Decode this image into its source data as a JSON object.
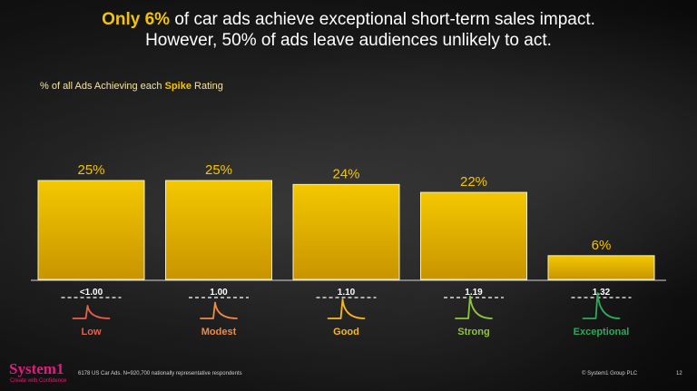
{
  "header": {
    "title_highlight": "Only 6%",
    "title_rest": " of car ads achieve exceptional short-term sales impact.",
    "title_line2": "However, 50% of ads leave audiences unlikely to act."
  },
  "subtitle": {
    "prefix": "% of all Ads Achieving each ",
    "highlight": "Spike",
    "suffix": " Rating"
  },
  "colors": {
    "bar_top": "#f3c800",
    "bar_bottom": "#c89400",
    "accent": "#f5c400",
    "brand": "#e6197e",
    "low": "#e8604c",
    "modest": "#ee8a45",
    "good": "#f5b820",
    "strong": "#8cc63f",
    "exceptional": "#2ea85a"
  },
  "chart_data": {
    "type": "bar",
    "title": "% of all Ads Achieving each Spike Rating",
    "categories": [
      "Low",
      "Modest",
      "Good",
      "Strong",
      "Exceptional"
    ],
    "values": [
      25,
      25,
      24,
      22,
      6
    ],
    "value_labels": [
      "25%",
      "25%",
      "24%",
      "22%",
      "6%"
    ],
    "spike_thresholds": [
      "<1.00",
      "1.00",
      "1.10",
      "1.19",
      "1.32"
    ],
    "ylim": [
      0,
      25
    ],
    "grid": false,
    "legend": "none"
  },
  "footer": {
    "brand": "System1",
    "tagline": "Create with Confidence",
    "note": "6178 US Car Ads. N=920,700 nationally representative respondents",
    "copyright": "© System1 Group PLC",
    "page_number": "12"
  }
}
